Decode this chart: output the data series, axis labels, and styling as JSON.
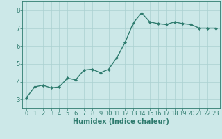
{
  "x": [
    0,
    1,
    2,
    3,
    4,
    5,
    6,
    7,
    8,
    9,
    10,
    11,
    12,
    13,
    14,
    15,
    16,
    17,
    18,
    19,
    20,
    21,
    22,
    23
  ],
  "y": [
    3.1,
    3.7,
    3.8,
    3.65,
    3.7,
    4.2,
    4.1,
    4.65,
    4.7,
    4.5,
    4.7,
    5.35,
    6.2,
    7.3,
    7.85,
    7.35,
    7.25,
    7.2,
    7.35,
    7.25,
    7.2,
    7.0,
    7.0,
    7.0
  ],
  "line_color": "#2e7b6e",
  "marker": "D",
  "marker_size": 2.0,
  "bg_color": "#cce8e8",
  "grid_color": "#aad0d0",
  "xlabel": "Humidex (Indice chaleur)",
  "ylim": [
    2.5,
    8.5
  ],
  "xlim": [
    -0.5,
    23.5
  ],
  "yticks": [
    3,
    4,
    5,
    6,
    7,
    8
  ],
  "xticks": [
    0,
    1,
    2,
    3,
    4,
    5,
    6,
    7,
    8,
    9,
    10,
    11,
    12,
    13,
    14,
    15,
    16,
    17,
    18,
    19,
    20,
    21,
    22,
    23
  ],
  "tick_color": "#2e7b6e",
  "axis_color": "#2e7b6e",
  "xlabel_fontsize": 7,
  "tick_fontsize": 6,
  "linewidth": 1.0
}
